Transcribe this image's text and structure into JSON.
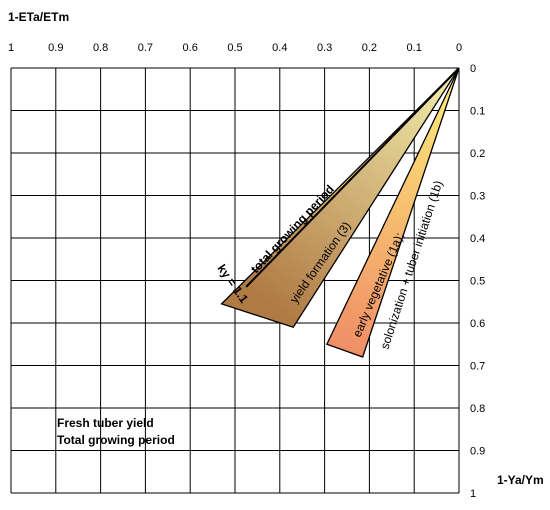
{
  "chart_data": {
    "type": "area",
    "xlabel": "1-ETa/ETm",
    "ylabel": "1-Ya/Ym",
    "x_axis_reversed": true,
    "y_axis_inverted": true,
    "x_ticks": [
      "1",
      "0.9",
      "0.8",
      "0.7",
      "0.6",
      "0.5",
      "0.4",
      "0.3",
      "0.2",
      "0.1",
      "0"
    ],
    "y_ticks": [
      "0",
      "0.1",
      "0.2",
      "0.3",
      "0.4",
      "0.5",
      "0.6",
      "0.7",
      "0.8",
      "0.9",
      "1"
    ],
    "xlim": [
      1,
      0
    ],
    "ylim": [
      0,
      1
    ],
    "grid": true,
    "series": [
      {
        "name": "total growing period",
        "type": "line",
        "ky_label": "ky = 1.1",
        "points": [
          [
            0,
            0
          ],
          [
            0.475,
            0.515
          ]
        ],
        "color": "#000000"
      },
      {
        "name": "yield formation (3)",
        "type": "band",
        "points": [
          [
            0,
            0
          ],
          [
            0.53,
            0.555
          ],
          [
            0.37,
            0.61
          ]
        ],
        "colors": [
          "#f5f1b0",
          "#b07a45"
        ]
      },
      {
        "name": "early vegetative (1a);",
        "type": "band",
        "points": [
          [
            0,
            0
          ],
          [
            0.295,
            0.65
          ],
          [
            0.215,
            0.68
          ]
        ],
        "colors": [
          "#fff07a",
          "#ef8e66"
        ]
      },
      {
        "name": "solonization + tuber initiation (1b)",
        "type": "band",
        "points": [
          [
            0,
            0
          ],
          [
            0.295,
            0.65
          ],
          [
            0.215,
            0.68
          ]
        ],
        "colors": [
          "#fff07a",
          "#ef8e66"
        ]
      }
    ],
    "annotations": [
      "Fresh tuber yield",
      "Total growing period"
    ]
  }
}
